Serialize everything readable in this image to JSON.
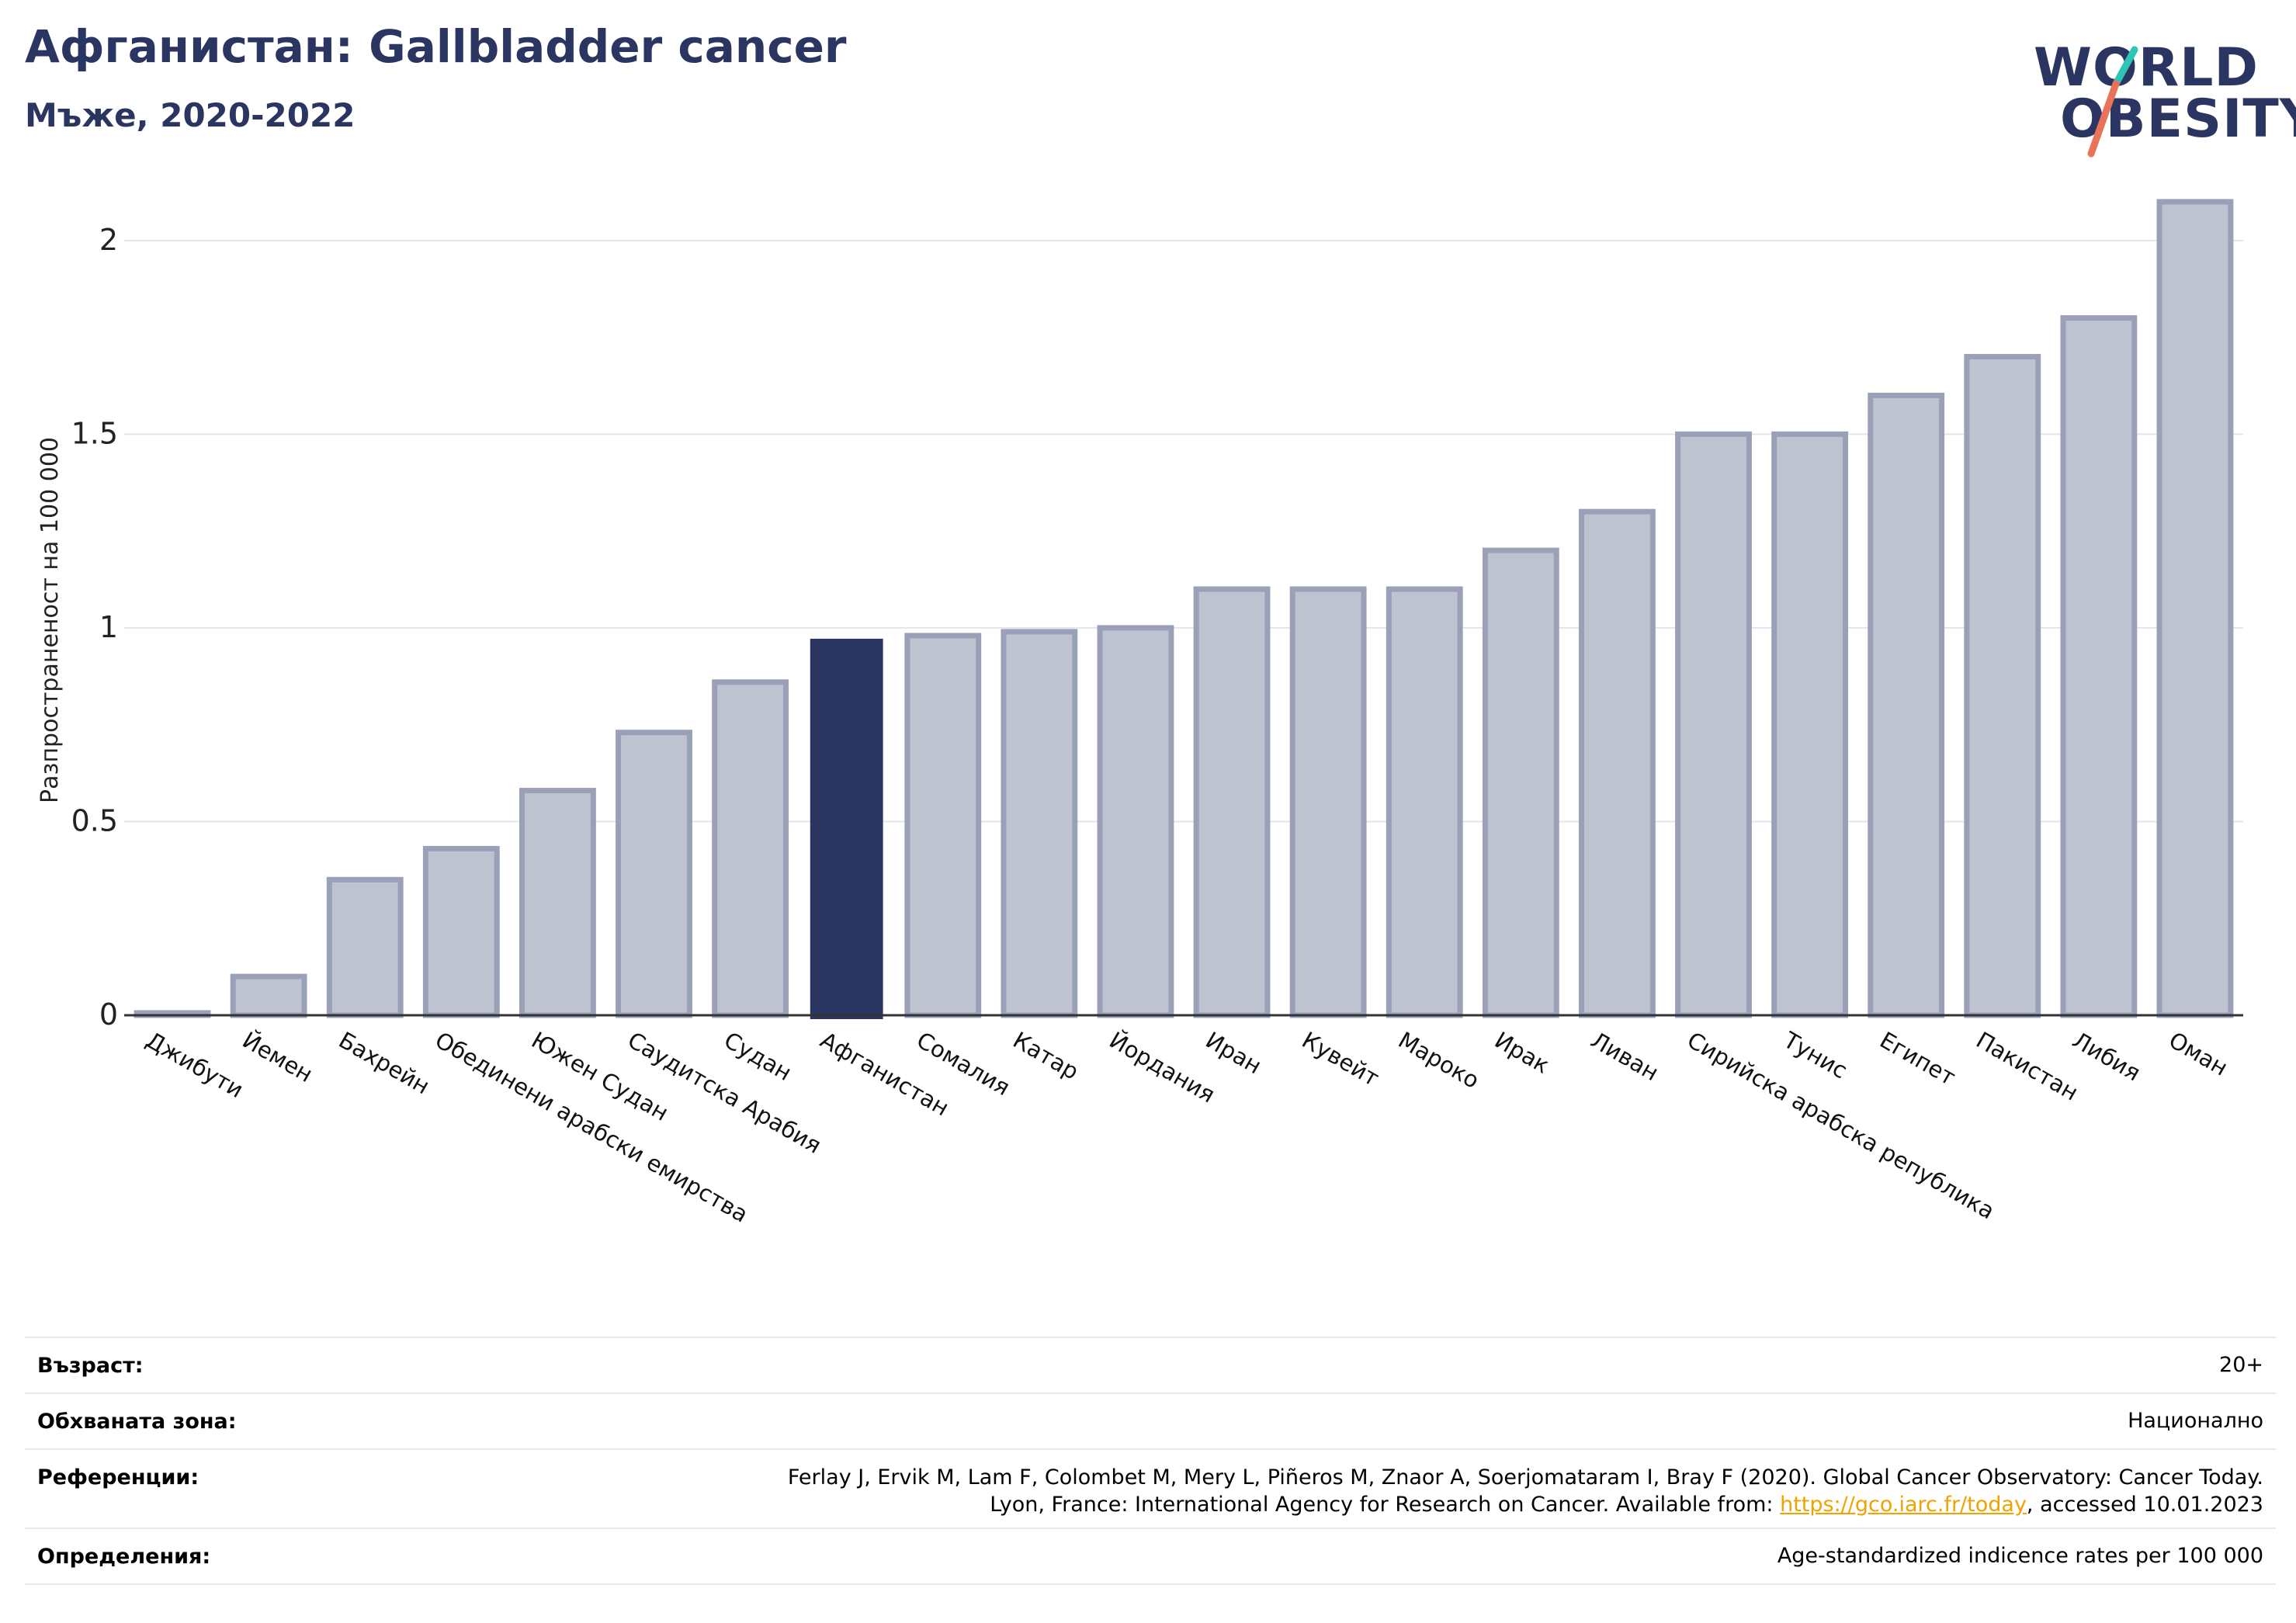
{
  "header": {
    "title": "Афганистан: Gallbladder cancer",
    "subtitle": "Мъже, 2020-2022"
  },
  "logo": {
    "line1": "WORLD",
    "line2": "OBESITY",
    "slash_colors": [
      "#2ec4b6",
      "#e8735a"
    ]
  },
  "colors": {
    "highlight": "#2b3561",
    "bar_fill": "#bfc2cf",
    "bar_stroke": "#9aa0b8",
    "grid": "#e3e5ec",
    "axis": "#333333"
  },
  "chart_data": {
    "type": "bar",
    "title": "Афганистан: Gallbladder cancer",
    "subtitle": "Мъже, 2020-2022",
    "ylabel": "Разпространеност  на 100 000",
    "xlabel": "",
    "ylim": [
      0,
      2.2
    ],
    "yticks": [
      0,
      0.5,
      1,
      1.5,
      2
    ],
    "ytick_labels": [
      "0",
      "0.5",
      "1",
      "1.5",
      "2"
    ],
    "grid": true,
    "highlight": "Афганистан",
    "categories": [
      "Джибути",
      "Йемен",
      "Бахрейн",
      "Обединени арабски емирства",
      "Южен Судан",
      "Саудитска Арабия",
      "Судан",
      "Афганистан",
      "Сомалия",
      "Катар",
      "Йордания",
      "Иран",
      "Кувейт",
      "Мароко",
      "Ирак",
      "Ливан",
      "Сирийска арабска република",
      "Тунис",
      "Египет",
      "Пакистан",
      "Либия",
      "Оман"
    ],
    "values": [
      0.005,
      0.1,
      0.35,
      0.43,
      0.58,
      0.73,
      0.86,
      0.97,
      0.98,
      0.99,
      1.0,
      1.1,
      1.1,
      1.1,
      1.2,
      1.3,
      1.5,
      1.5,
      1.6,
      1.7,
      1.8,
      2.1
    ]
  },
  "info": {
    "age_label": "Възраст:",
    "age_value": "20+",
    "area_label": "Обхваната зона:",
    "area_value": "Национално",
    "refs_label": "Референции:",
    "refs_line1": "Ferlay J, Ervik M, Lam F, Colombet M, Mery L, Piñeros M, Znaor A, Soerjomataram I, Bray F (2020). Global Cancer Observatory: Cancer Today.",
    "refs_line2_pre": "Lyon, France: International Agency for Research on Cancer. Available from: ",
    "refs_link": "https://gco.iarc.fr/today",
    "refs_line2_post": ", accessed 10.01.2023",
    "def_label": "Определения:",
    "def_value": "Age-standardized indicence rates per 100 000"
  }
}
